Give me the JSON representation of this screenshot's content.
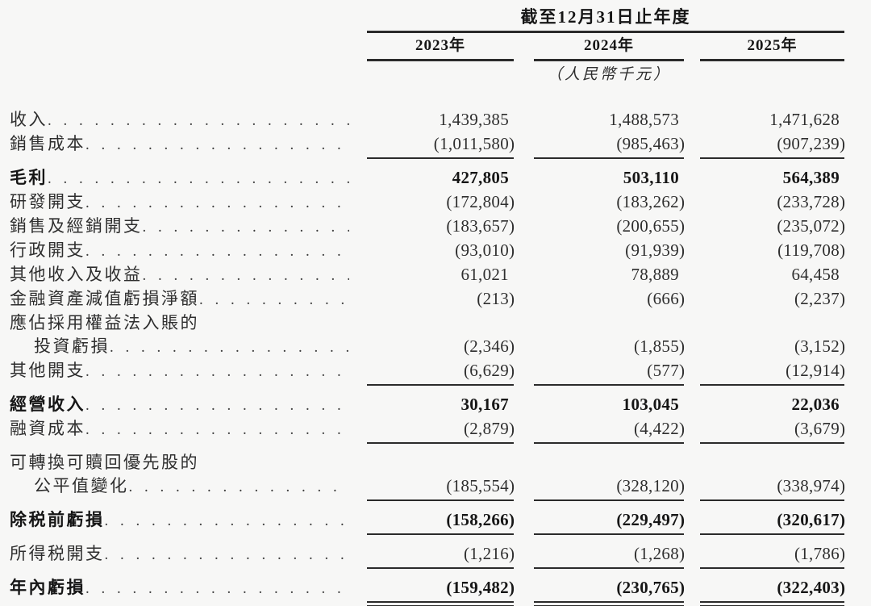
{
  "table": {
    "period_header": "截至12月31日止年度",
    "years": [
      "2023年",
      "2024年",
      "2025年"
    ],
    "unit_note": "（人民幣千元）",
    "rows": [
      {
        "label": "收入",
        "values": [
          "1,439,385",
          "1,488,573",
          "1,471,628"
        ]
      },
      {
        "label": "銷售成本",
        "values": [
          "(1,011,580)",
          "(985,463)",
          "(907,239)"
        ],
        "rule": true
      },
      {
        "label": "毛利",
        "bold": true,
        "values": [
          "427,805",
          "503,110",
          "564,389"
        ]
      },
      {
        "label": "研發開支",
        "values": [
          "(172,804)",
          "(183,262)",
          "(233,728)"
        ]
      },
      {
        "label": "銷售及經銷開支",
        "values": [
          "(183,657)",
          "(200,655)",
          "(235,072)"
        ]
      },
      {
        "label": "行政開支",
        "values": [
          "(93,010)",
          "(91,939)",
          "(119,708)"
        ]
      },
      {
        "label": "其他收入及收益",
        "values": [
          "61,021",
          "78,889",
          "64,458"
        ]
      },
      {
        "label": "金融資產減值虧損淨額",
        "values": [
          "(213)",
          "(666)",
          "(2,237)"
        ]
      },
      {
        "label": "應佔採用權益法入賬的",
        "continuation": true
      },
      {
        "label": "投資虧損",
        "indent": true,
        "values": [
          "(2,346)",
          "(1,855)",
          "(3,152)"
        ]
      },
      {
        "label": "其他開支",
        "values": [
          "(6,629)",
          "(577)",
          "(12,914)"
        ],
        "rule": true
      },
      {
        "label": "經營收入",
        "bold": true,
        "values": [
          "30,167",
          "103,045",
          "22,036"
        ]
      },
      {
        "label": "融資成本",
        "values": [
          "(2,879)",
          "(4,422)",
          "(3,679)"
        ],
        "rule": true
      },
      {
        "label": "可轉換可贖回優先股的",
        "continuation": true
      },
      {
        "label": "公平值變化",
        "indent": true,
        "values": [
          "(185,554)",
          "(328,120)",
          "(338,974)"
        ],
        "rule": true
      },
      {
        "label": "除税前虧損",
        "bold": true,
        "values": [
          "(158,266)",
          "(229,497)",
          "(320,617)"
        ],
        "rule": true
      },
      {
        "label": "所得税開支",
        "values": [
          "(1,216)",
          "(1,268)",
          "(1,786)"
        ],
        "rule": true
      },
      {
        "label": "年內虧損",
        "bold": true,
        "values": [
          "(159,482)",
          "(230,765)",
          "(322,403)"
        ],
        "double_rule": true
      }
    ]
  },
  "colors": {
    "text": "#2e2e2e",
    "bold_text": "#161616",
    "rule": "#2b2b2b",
    "background": "#f7f7f6"
  }
}
